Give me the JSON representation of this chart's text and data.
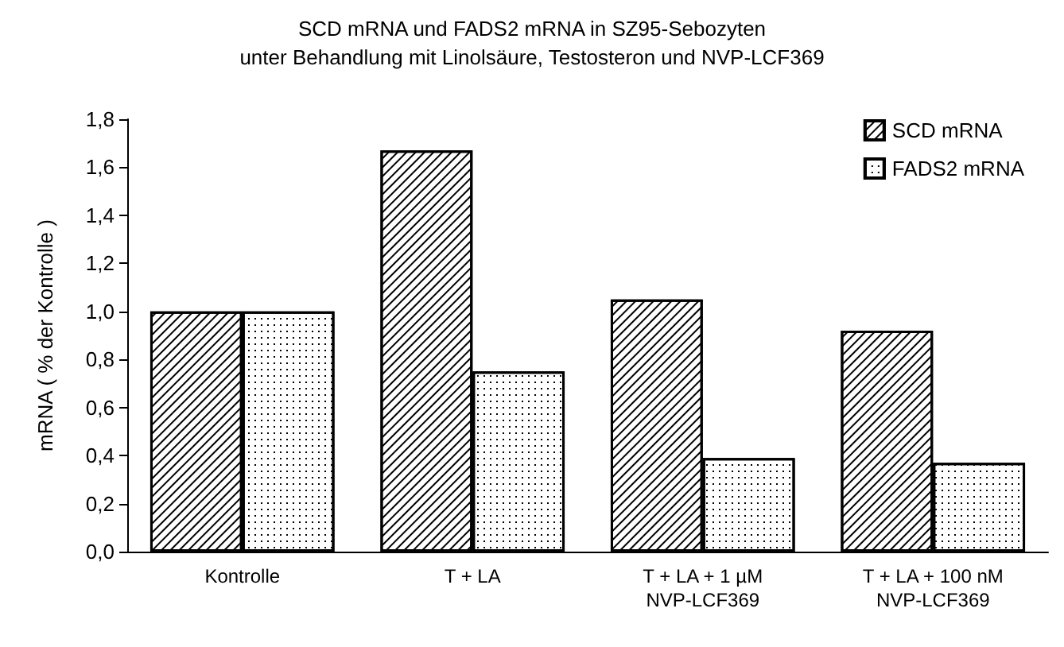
{
  "chart_data": {
    "type": "bar",
    "title": "SCD mRNA und FADS2 mRNA in SZ95-Sebozyten\nunter Behandlung mit Linolsäure, Testosteron und NVP-LCF369",
    "ylabel": "mRNA ( % der Kontrolle )",
    "categories": [
      "Kontrolle",
      "T + LA",
      "T + LA + 1 µM\nNVP-LCF369",
      "T + LA + 100 nM\nNVP-LCF369"
    ],
    "series": [
      {
        "name": "SCD mRNA",
        "color": "#ffffff",
        "values": [
          1.0,
          1.67,
          1.05,
          0.92
        ]
      },
      {
        "name": "FADS2 mRNA",
        "color": "#ffffff",
        "values": [
          1.0,
          0.75,
          0.39,
          0.37
        ]
      }
    ],
    "ylim": [
      0,
      1.8
    ],
    "yticks": [
      {
        "value": 0,
        "label": "0,0"
      },
      {
        "value": 0.2,
        "label": "0,2"
      },
      {
        "value": 0.4,
        "label": "0,4"
      },
      {
        "value": 0.6,
        "label": "0,6"
      },
      {
        "value": 0.8,
        "label": "0,8"
      },
      {
        "value": 1.0,
        "label": "1,0"
      },
      {
        "value": 1.2,
        "label": "1,2"
      },
      {
        "value": 1.4,
        "label": "1,4"
      },
      {
        "value": 1.6,
        "label": "1,6"
      },
      {
        "value": 1.8,
        "label": "1,8"
      }
    ],
    "grid": false,
    "legend": "top right"
  }
}
